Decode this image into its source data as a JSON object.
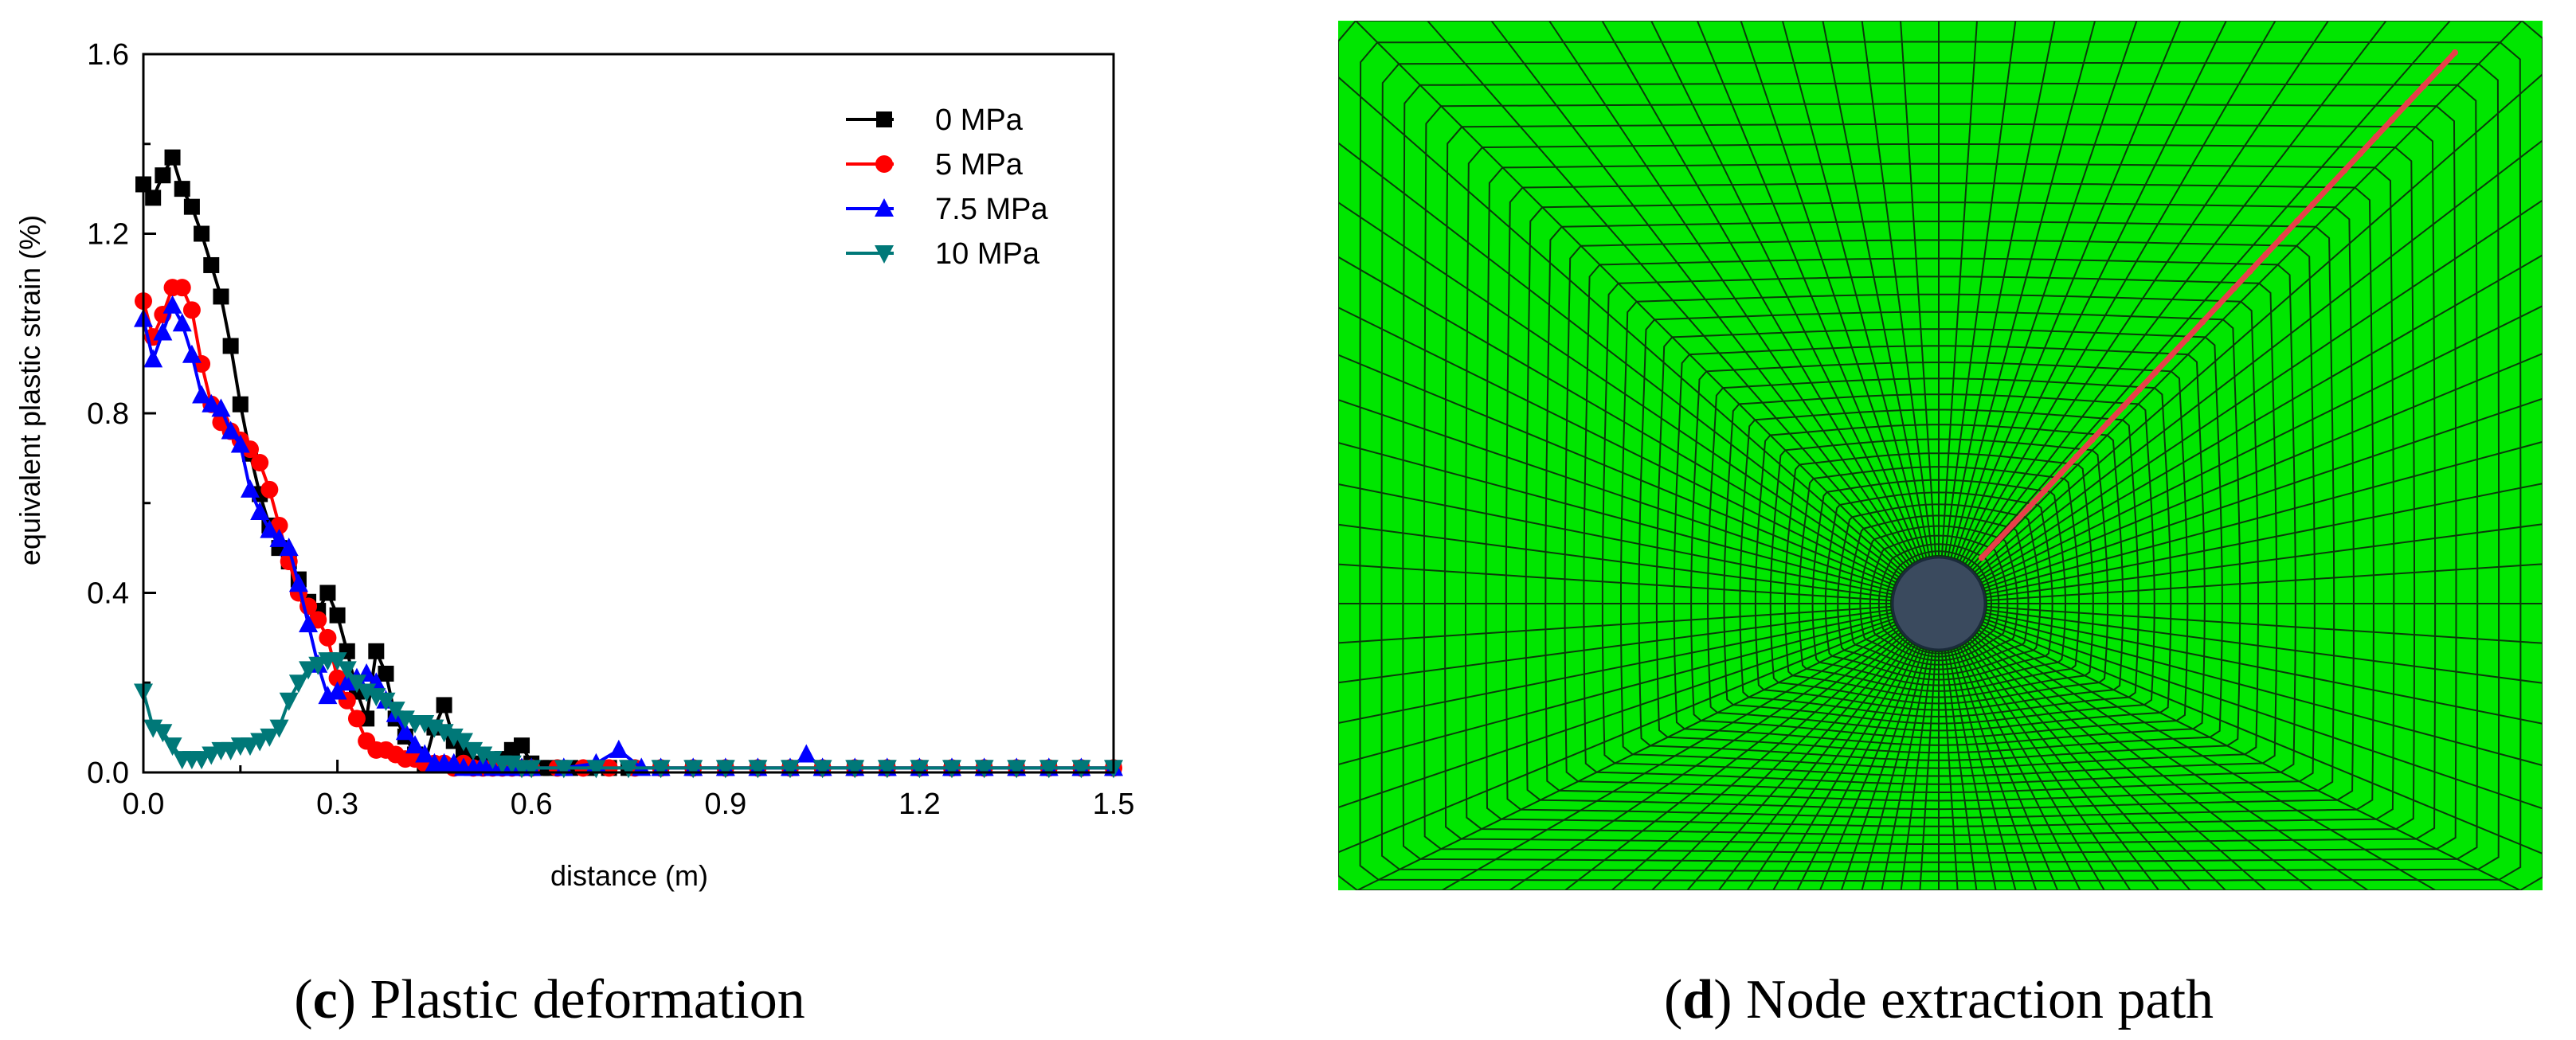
{
  "chart_data": {
    "type": "line",
    "xlabel": "distance (m)",
    "ylabel": "equivalent plastic strain (%)",
    "xlim": [
      0,
      1.5
    ],
    "ylim": [
      0,
      1.6
    ],
    "x_ticks": [
      "0.0",
      "0.3",
      "0.6",
      "0.9",
      "1.2",
      "1.5"
    ],
    "y_ticks": [
      "0.0",
      "0.4",
      "0.8",
      "1.2",
      "1.6"
    ],
    "legend_position": "top-right",
    "series": [
      {
        "name": "0 MPa",
        "color": "#000000",
        "marker": "square",
        "points": [
          [
            0,
            1.31
          ],
          [
            0.015,
            1.28
          ],
          [
            0.03,
            1.33
          ],
          [
            0.045,
            1.37
          ],
          [
            0.06,
            1.3
          ],
          [
            0.075,
            1.26
          ],
          [
            0.09,
            1.2
          ],
          [
            0.105,
            1.13
          ],
          [
            0.12,
            1.06
          ],
          [
            0.135,
            0.95
          ],
          [
            0.15,
            0.82
          ],
          [
            0.165,
            0.71
          ],
          [
            0.18,
            0.62
          ],
          [
            0.195,
            0.55
          ],
          [
            0.21,
            0.5
          ],
          [
            0.225,
            0.47
          ],
          [
            0.24,
            0.43
          ],
          [
            0.255,
            0.38
          ],
          [
            0.27,
            0.36
          ],
          [
            0.285,
            0.4
          ],
          [
            0.3,
            0.35
          ],
          [
            0.315,
            0.27
          ],
          [
            0.33,
            0.18
          ],
          [
            0.345,
            0.12
          ],
          [
            0.36,
            0.27
          ],
          [
            0.375,
            0.22
          ],
          [
            0.39,
            0.12
          ],
          [
            0.405,
            0.08
          ],
          [
            0.42,
            0.04
          ],
          [
            0.435,
            0.02
          ],
          [
            0.45,
            0.1
          ],
          [
            0.465,
            0.15
          ],
          [
            0.48,
            0.07
          ],
          [
            0.495,
            0.04
          ],
          [
            0.51,
            0.02
          ],
          [
            0.525,
            0.01
          ],
          [
            0.54,
            0.02
          ],
          [
            0.555,
            0.03
          ],
          [
            0.57,
            0.05
          ],
          [
            0.585,
            0.06
          ],
          [
            0.6,
            0.02
          ],
          [
            0.615,
            0.01
          ],
          [
            0.63,
            0.01
          ],
          [
            0.645,
            0.01
          ],
          [
            0.66,
            0.01
          ],
          [
            0.69,
            0.01
          ],
          [
            0.72,
            0.01
          ],
          [
            0.75,
            0.01
          ],
          [
            0.8,
            0.01
          ],
          [
            0.85,
            0.01
          ],
          [
            0.9,
            0.01
          ],
          [
            0.95,
            0.01
          ],
          [
            1.0,
            0.01
          ],
          [
            1.05,
            0.01
          ],
          [
            1.1,
            0.01
          ],
          [
            1.15,
            0.01
          ],
          [
            1.2,
            0.01
          ],
          [
            1.25,
            0.01
          ],
          [
            1.3,
            0.01
          ],
          [
            1.35,
            0.01
          ],
          [
            1.4,
            0.01
          ],
          [
            1.45,
            0.01
          ],
          [
            1.5,
            0.01
          ]
        ]
      },
      {
        "name": "5 MPa",
        "color": "#ff0000",
        "marker": "circle",
        "points": [
          [
            0,
            1.05
          ],
          [
            0.015,
            0.97
          ],
          [
            0.03,
            1.02
          ],
          [
            0.045,
            1.08
          ],
          [
            0.06,
            1.08
          ],
          [
            0.075,
            1.03
          ],
          [
            0.09,
            0.91
          ],
          [
            0.105,
            0.82
          ],
          [
            0.12,
            0.78
          ],
          [
            0.135,
            0.76
          ],
          [
            0.15,
            0.74
          ],
          [
            0.165,
            0.72
          ],
          [
            0.18,
            0.69
          ],
          [
            0.195,
            0.63
          ],
          [
            0.21,
            0.55
          ],
          [
            0.225,
            0.47
          ],
          [
            0.24,
            0.4
          ],
          [
            0.255,
            0.37
          ],
          [
            0.27,
            0.34
          ],
          [
            0.285,
            0.3
          ],
          [
            0.3,
            0.21
          ],
          [
            0.315,
            0.16
          ],
          [
            0.33,
            0.12
          ],
          [
            0.345,
            0.07
          ],
          [
            0.36,
            0.05
          ],
          [
            0.375,
            0.05
          ],
          [
            0.39,
            0.04
          ],
          [
            0.405,
            0.03
          ],
          [
            0.42,
            0.03
          ],
          [
            0.435,
            0.02
          ],
          [
            0.45,
            0.02
          ],
          [
            0.465,
            0.02
          ],
          [
            0.48,
            0.01
          ],
          [
            0.495,
            0.02
          ],
          [
            0.51,
            0.01
          ],
          [
            0.525,
            0.01
          ],
          [
            0.54,
            0.01
          ],
          [
            0.555,
            0.01
          ],
          [
            0.57,
            0.01
          ],
          [
            0.585,
            0.01
          ],
          [
            0.6,
            0.01
          ],
          [
            0.64,
            0.01
          ],
          [
            0.68,
            0.01
          ],
          [
            0.72,
            0.01
          ],
          [
            0.76,
            0.01
          ],
          [
            0.8,
            0.01
          ],
          [
            0.85,
            0.01
          ],
          [
            0.9,
            0.01
          ],
          [
            0.95,
            0.01
          ],
          [
            1.0,
            0.01
          ],
          [
            1.05,
            0.01
          ],
          [
            1.1,
            0.01
          ],
          [
            1.15,
            0.01
          ],
          [
            1.2,
            0.01
          ],
          [
            1.25,
            0.01
          ],
          [
            1.3,
            0.01
          ],
          [
            1.35,
            0.01
          ],
          [
            1.4,
            0.01
          ],
          [
            1.45,
            0.01
          ],
          [
            1.5,
            0.01
          ]
        ]
      },
      {
        "name": "7.5 MPa",
        "color": "#0000ff",
        "marker": "triangle-up",
        "points": [
          [
            0,
            1.01
          ],
          [
            0.015,
            0.92
          ],
          [
            0.03,
            0.98
          ],
          [
            0.045,
            1.04
          ],
          [
            0.06,
            1.0
          ],
          [
            0.075,
            0.93
          ],
          [
            0.09,
            0.84
          ],
          [
            0.105,
            0.82
          ],
          [
            0.12,
            0.81
          ],
          [
            0.135,
            0.76
          ],
          [
            0.15,
            0.73
          ],
          [
            0.165,
            0.63
          ],
          [
            0.18,
            0.58
          ],
          [
            0.195,
            0.54
          ],
          [
            0.21,
            0.52
          ],
          [
            0.225,
            0.5
          ],
          [
            0.24,
            0.42
          ],
          [
            0.255,
            0.33
          ],
          [
            0.27,
            0.24
          ],
          [
            0.285,
            0.17
          ],
          [
            0.3,
            0.18
          ],
          [
            0.315,
            0.2
          ],
          [
            0.33,
            0.21
          ],
          [
            0.345,
            0.22
          ],
          [
            0.36,
            0.2
          ],
          [
            0.375,
            0.16
          ],
          [
            0.39,
            0.13
          ],
          [
            0.405,
            0.09
          ],
          [
            0.42,
            0.06
          ],
          [
            0.435,
            0.04
          ],
          [
            0.45,
            0.02
          ],
          [
            0.465,
            0.02
          ],
          [
            0.48,
            0.02
          ],
          [
            0.495,
            0.01
          ],
          [
            0.51,
            0.01
          ],
          [
            0.525,
            0.02
          ],
          [
            0.54,
            0.01
          ],
          [
            0.555,
            0.01
          ],
          [
            0.57,
            0.01
          ],
          [
            0.585,
            0.01
          ],
          [
            0.6,
            0.01
          ],
          [
            0.65,
            0.01
          ],
          [
            0.7,
            0.02
          ],
          [
            0.735,
            0.05
          ],
          [
            0.77,
            0.01
          ],
          [
            0.8,
            0.01
          ],
          [
            0.85,
            0.01
          ],
          [
            0.9,
            0.01
          ],
          [
            0.95,
            0.01
          ],
          [
            1.0,
            0.01
          ],
          [
            1.025,
            0.04
          ],
          [
            1.05,
            0.01
          ],
          [
            1.1,
            0.01
          ],
          [
            1.15,
            0.01
          ],
          [
            1.2,
            0.01
          ],
          [
            1.25,
            0.01
          ],
          [
            1.3,
            0.01
          ],
          [
            1.35,
            0.01
          ],
          [
            1.4,
            0.01
          ],
          [
            1.45,
            0.01
          ],
          [
            1.5,
            0.01
          ]
        ]
      },
      {
        "name": "10 MPa",
        "color": "#007878",
        "marker": "triangle-down",
        "points": [
          [
            0,
            0.18
          ],
          [
            0.015,
            0.1
          ],
          [
            0.03,
            0.09
          ],
          [
            0.045,
            0.06
          ],
          [
            0.06,
            0.03
          ],
          [
            0.075,
            0.03
          ],
          [
            0.09,
            0.03
          ],
          [
            0.105,
            0.04
          ],
          [
            0.12,
            0.05
          ],
          [
            0.135,
            0.05
          ],
          [
            0.15,
            0.06
          ],
          [
            0.165,
            0.06
          ],
          [
            0.18,
            0.07
          ],
          [
            0.195,
            0.08
          ],
          [
            0.21,
            0.1
          ],
          [
            0.225,
            0.16
          ],
          [
            0.24,
            0.2
          ],
          [
            0.255,
            0.23
          ],
          [
            0.27,
            0.24
          ],
          [
            0.285,
            0.25
          ],
          [
            0.3,
            0.25
          ],
          [
            0.315,
            0.23
          ],
          [
            0.33,
            0.2
          ],
          [
            0.345,
            0.18
          ],
          [
            0.36,
            0.17
          ],
          [
            0.375,
            0.16
          ],
          [
            0.39,
            0.14
          ],
          [
            0.405,
            0.12
          ],
          [
            0.42,
            0.11
          ],
          [
            0.435,
            0.11
          ],
          [
            0.45,
            0.1
          ],
          [
            0.465,
            0.09
          ],
          [
            0.48,
            0.08
          ],
          [
            0.495,
            0.07
          ],
          [
            0.51,
            0.05
          ],
          [
            0.525,
            0.04
          ],
          [
            0.54,
            0.03
          ],
          [
            0.555,
            0.02
          ],
          [
            0.57,
            0.02
          ],
          [
            0.585,
            0.01
          ],
          [
            0.6,
            0.01
          ],
          [
            0.65,
            0.01
          ],
          [
            0.7,
            0.01
          ],
          [
            0.75,
            0.01
          ],
          [
            0.8,
            0.01
          ],
          [
            0.85,
            0.01
          ],
          [
            0.9,
            0.01
          ],
          [
            0.95,
            0.01
          ],
          [
            1.0,
            0.01
          ],
          [
            1.05,
            0.01
          ],
          [
            1.1,
            0.01
          ],
          [
            1.15,
            0.01
          ],
          [
            1.2,
            0.01
          ],
          [
            1.25,
            0.01
          ],
          [
            1.3,
            0.01
          ],
          [
            1.35,
            0.01
          ],
          [
            1.4,
            0.01
          ],
          [
            1.45,
            0.01
          ],
          [
            1.5,
            0.01
          ]
        ]
      }
    ]
  },
  "captions": {
    "left": {
      "letter": "c",
      "open": "(",
      "close": ")",
      "text": " Plastic deformation"
    },
    "right": {
      "letter": "d",
      "open": "(",
      "close": ")",
      "text": " Node extraction path"
    }
  },
  "mesh_image": {
    "background_color": "#00e600",
    "grid_color": "#0a3a0a",
    "hole_color": "#3a4a5e",
    "path_color": "#e8404a"
  }
}
